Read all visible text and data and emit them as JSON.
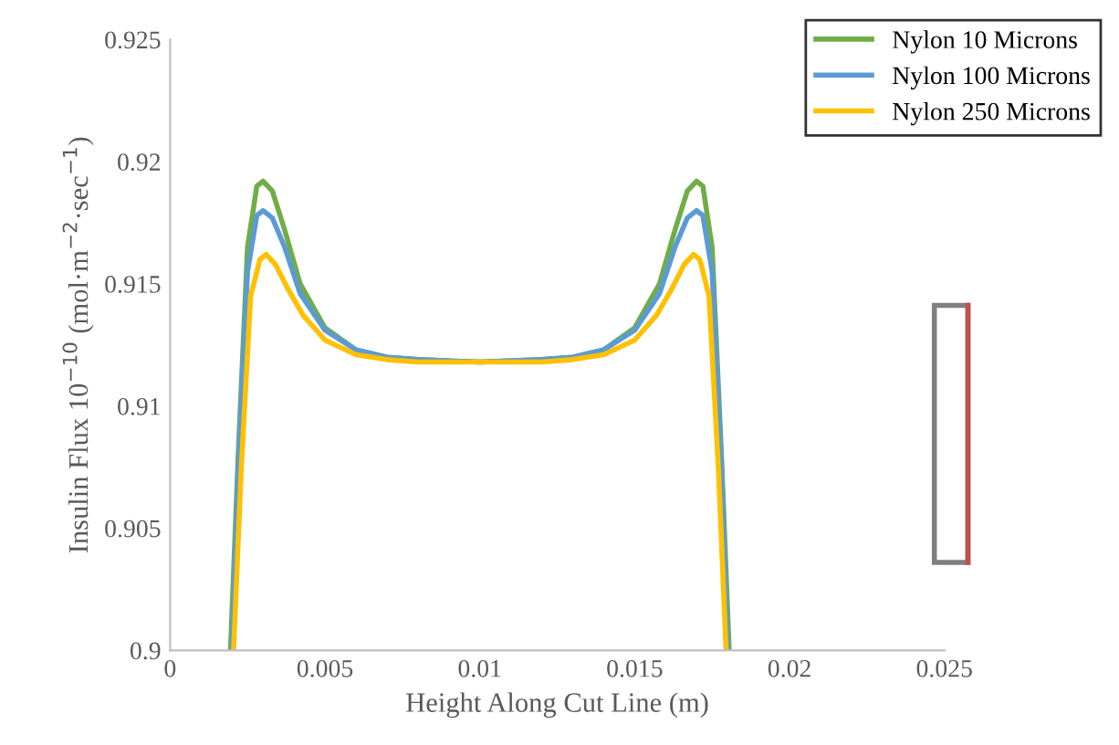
{
  "chart_data": {
    "type": "line",
    "xlabel": "Height Along Cut Line (m)",
    "ylabel": "Insulin Flux 10$^{−10}$ (mol·m$^{−2}$·sec$^{−1}$)",
    "xlim": [
      0,
      0.025
    ],
    "xticks": [
      0,
      0.005,
      0.01,
      0.015,
      0.02,
      0.025
    ],
    "ylim": [
      0.9,
      0.925
    ],
    "yticks": [
      0.9,
      0.905,
      0.91,
      0.915,
      0.92,
      0.925
    ],
    "grid": false,
    "legend": "top right",
    "marker": "none",
    "line_style": "solid",
    "series": [
      {
        "name": "Nylon 10 Microns",
        "color": "#70ad47",
        "x": [
          0.00195,
          0.0022,
          0.0025,
          0.0028,
          0.003,
          0.0033,
          0.0037,
          0.0042,
          0.005,
          0.006,
          0.007,
          0.008,
          0.01,
          0.012,
          0.013,
          0.014,
          0.015,
          0.0158,
          0.0163,
          0.0167,
          0.017,
          0.0172,
          0.0175,
          0.0178,
          0.01805
        ],
        "values": [
          0.9,
          0.908,
          0.9165,
          0.919,
          0.9192,
          0.9188,
          0.9172,
          0.915,
          0.9132,
          0.9123,
          0.912,
          0.9119,
          0.9118,
          0.9119,
          0.912,
          0.9123,
          0.9132,
          0.915,
          0.9172,
          0.9188,
          0.9192,
          0.919,
          0.9165,
          0.908,
          0.9
        ]
      },
      {
        "name": "Nylon 100 Microns",
        "color": "#5b9bd5",
        "x": [
          0.002,
          0.0022,
          0.0025,
          0.0028,
          0.003,
          0.0033,
          0.0037,
          0.0042,
          0.005,
          0.006,
          0.007,
          0.008,
          0.01,
          0.012,
          0.013,
          0.014,
          0.015,
          0.0158,
          0.0163,
          0.0167,
          0.017,
          0.0172,
          0.0175,
          0.0178,
          0.018
        ],
        "values": [
          0.9,
          0.9075,
          0.9155,
          0.9178,
          0.918,
          0.9177,
          0.9165,
          0.9146,
          0.9131,
          0.9123,
          0.912,
          0.9119,
          0.9118,
          0.9119,
          0.912,
          0.9123,
          0.9131,
          0.9146,
          0.9165,
          0.9177,
          0.918,
          0.9178,
          0.9155,
          0.9075,
          0.9
        ]
      },
      {
        "name": "Nylon 250 Microns",
        "color": "#ffc000",
        "x": [
          0.00205,
          0.0023,
          0.0026,
          0.0029,
          0.0031,
          0.0034,
          0.0038,
          0.0043,
          0.005,
          0.006,
          0.007,
          0.008,
          0.01,
          0.012,
          0.013,
          0.014,
          0.015,
          0.0157,
          0.0162,
          0.0166,
          0.0169,
          0.0171,
          0.0174,
          0.0177,
          0.01795
        ],
        "values": [
          0.9,
          0.9075,
          0.9145,
          0.916,
          0.9162,
          0.9158,
          0.9148,
          0.9137,
          0.9127,
          0.9121,
          0.9119,
          0.9118,
          0.9118,
          0.9118,
          0.9119,
          0.9121,
          0.9127,
          0.9137,
          0.9148,
          0.9158,
          0.9162,
          0.916,
          0.9145,
          0.9075,
          0.9
        ]
      }
    ]
  }
}
